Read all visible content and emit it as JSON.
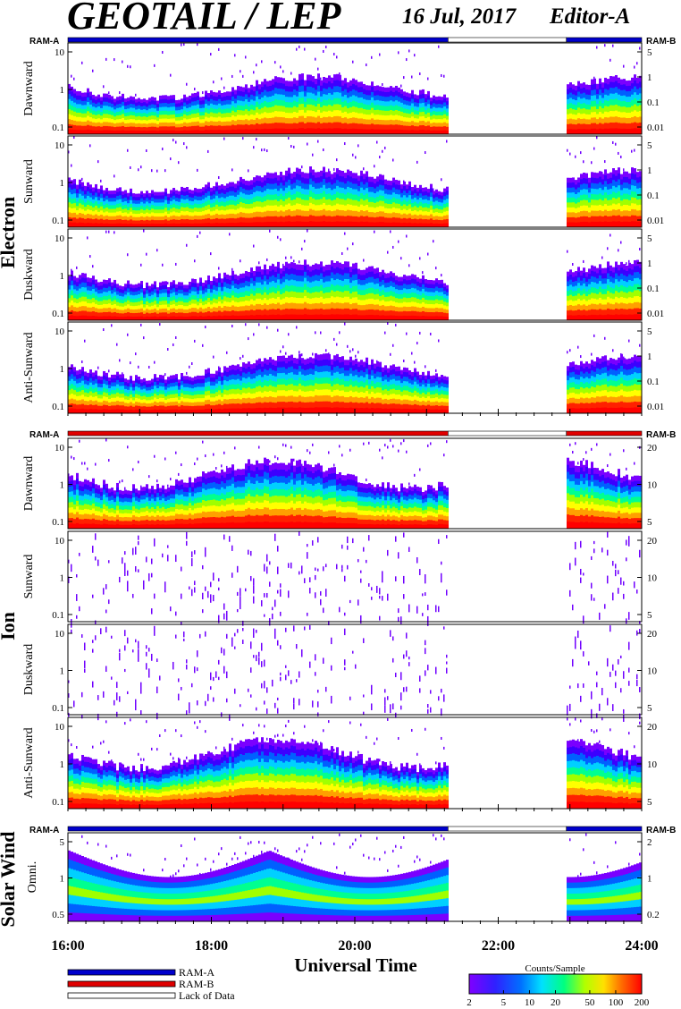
{
  "header": {
    "title": "GEOTAIL / LEP",
    "date": "16 Jul, 2017",
    "editor": "Editor-A"
  },
  "ram": {
    "left": "RAM-A",
    "right": "RAM-B"
  },
  "colors": {
    "ram_a": "#0000cc",
    "ram_b": "#e00000",
    "lack": "#ffffff",
    "spectrum": [
      "#7a00ff",
      "#3b00ff",
      "#0060ff",
      "#00d0ff",
      "#00ff90",
      "#a0ff00",
      "#ffff00",
      "#ffa000",
      "#ff2000",
      "#ff0000"
    ]
  },
  "sections": [
    {
      "name": "Electron",
      "bar_color": "ram_a",
      "panels": [
        {
          "label": "Dawnward",
          "left_ticks": [
            "10",
            "1",
            "0.1"
          ],
          "right_ticks": [
            "5",
            "1",
            "0.1",
            "0.01"
          ]
        },
        {
          "label": "Sunward",
          "left_ticks": [
            "10",
            "1",
            "0.1"
          ],
          "right_ticks": [
            "5",
            "1",
            "0.1",
            "0.01"
          ]
        },
        {
          "label": "Duskward",
          "left_ticks": [
            "10",
            "1",
            "0.1"
          ],
          "right_ticks": [
            "5",
            "1",
            "0.1",
            "0.01"
          ]
        },
        {
          "label": "Anti-Sunward",
          "left_ticks": [
            "10",
            "1",
            "0.1"
          ],
          "right_ticks": [
            "5",
            "1",
            "0.1",
            "0.01"
          ]
        }
      ]
    },
    {
      "name": "Ion",
      "bar_color": "ram_b",
      "panels": [
        {
          "label": "Dawnward",
          "left_ticks": [
            "10",
            "1",
            "0.1"
          ],
          "right_ticks": [
            "20",
            "10",
            "5"
          ]
        },
        {
          "label": "Sunward",
          "left_ticks": [
            "10",
            "1",
            "0.1"
          ],
          "right_ticks": [
            "20",
            "10",
            "5"
          ]
        },
        {
          "label": "Duskward",
          "left_ticks": [
            "10",
            "1",
            "0.1"
          ],
          "right_ticks": [
            "20",
            "10",
            "5"
          ]
        },
        {
          "label": "Anti-Sunward",
          "left_ticks": [
            "10",
            "1",
            "0.1"
          ],
          "right_ticks": [
            "20",
            "10",
            "5"
          ]
        }
      ]
    },
    {
      "name": "Solar Wind",
      "bar_color": "ram_a",
      "panels": [
        {
          "label": "Omni.",
          "left_ticks": [
            "5",
            "1",
            "0.5"
          ],
          "right_ticks": [
            "2",
            "1",
            "0.2"
          ]
        }
      ]
    }
  ],
  "chart_data": {
    "type": "heatmap",
    "xlabel": "Universal Time",
    "x_ticks": [
      "16:00",
      "18:00",
      "20:00",
      "22:00",
      "24:00"
    ],
    "x_range_hours": [
      16,
      24
    ],
    "data_gap_hours": [
      21.3,
      22.95
    ],
    "colorbar": {
      "label": "Counts/Sample",
      "ticks": [
        "2",
        "5",
        "10",
        "20",
        "50",
        "100",
        "200"
      ]
    },
    "legend": [
      {
        "label": "RAM-A",
        "color": "#0000cc"
      },
      {
        "label": "RAM-B",
        "color": "#e00000"
      },
      {
        "label": "Lack of Data",
        "color": "#ffffff"
      }
    ]
  }
}
